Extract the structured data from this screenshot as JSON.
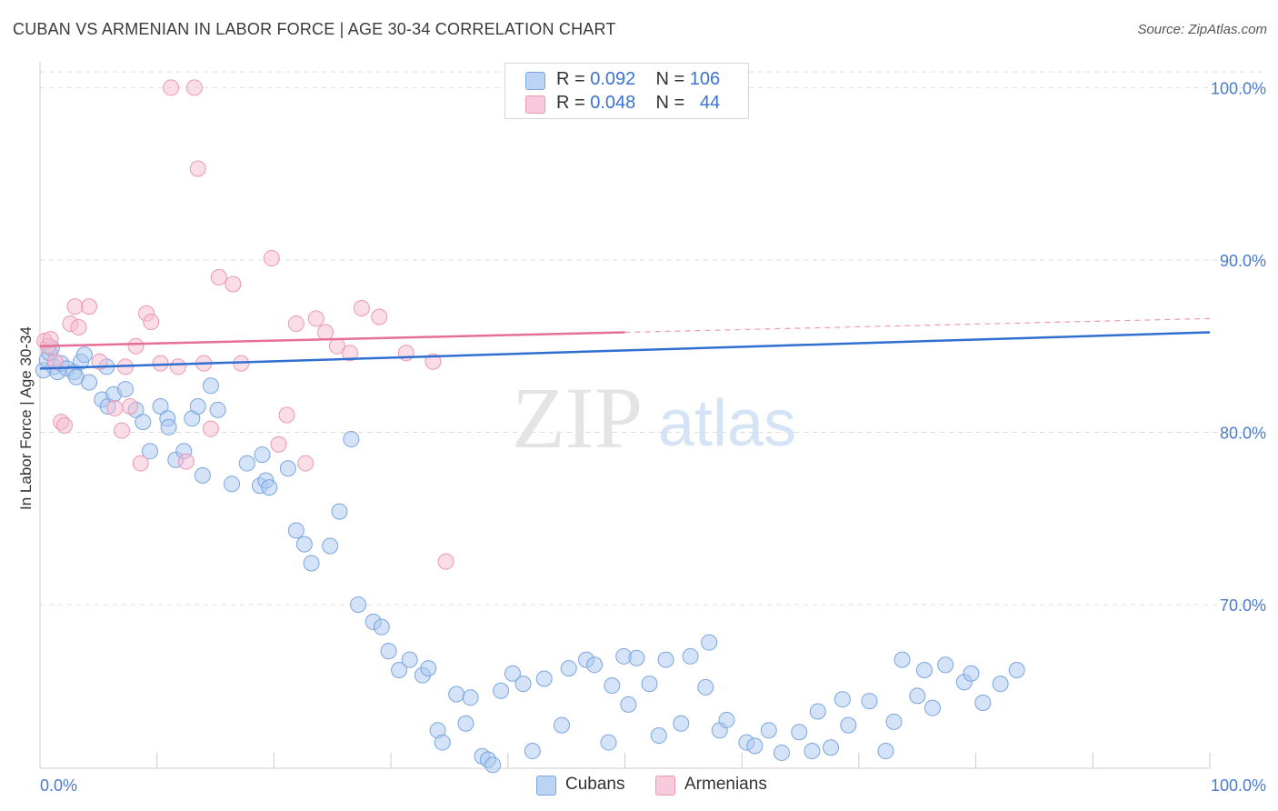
{
  "title": "CUBAN VS ARMENIAN IN LABOR FORCE | AGE 30-34 CORRELATION CHART",
  "source": "Source: ZipAtlas.com",
  "watermark": {
    "zip": "ZIP",
    "atlas": "atlas"
  },
  "legend": {
    "rows": [
      {
        "r_label": "R =",
        "r_value": "0.092",
        "n_label": "N =",
        "n_value": "106"
      },
      {
        "r_label": "R =",
        "r_value": "0.048",
        "n_label": "N =",
        "n_value": "44"
      }
    ]
  },
  "bottom_legend": [
    "Cubans",
    "Armenians"
  ],
  "colors": {
    "cubans_fill": "#a9c8f0",
    "cubans_stroke": "#7aa6e0",
    "cubans_line": "#2f6fcf",
    "armenians_fill": "#f7bcd0",
    "armenians_stroke": "#ec97b5",
    "armenians_line": "#e56f98",
    "grid": "#dddddd",
    "tick_text": "#4a7ad0"
  },
  "chart_data": {
    "type": "scatter",
    "title": "CUBAN VS ARMENIAN IN LABOR FORCE | AGE 30-34 CORRELATION CHART",
    "xlabel": "",
    "ylabel": "In Labor Force | Age 30-34",
    "xlim": [
      0,
      100
    ],
    "ylim": [
      60.5,
      101.5
    ],
    "x_tick_labels": [
      "0.0%",
      "100.0%"
    ],
    "y_ticks": [
      70,
      80,
      90,
      100
    ],
    "y_tick_labels": [
      "70.0%",
      "80.0%",
      "90.0%",
      "100.0%"
    ],
    "grid": true,
    "legend_position": "top-center",
    "series": [
      {
        "name": "Cubans",
        "regression": {
          "x": [
            0,
            100
          ],
          "y": [
            83.7,
            85.8
          ]
        },
        "points": [
          [
            0.3,
            83.6
          ],
          [
            0.6,
            84.2
          ],
          [
            0.8,
            84.6
          ],
          [
            1.0,
            84.9
          ],
          [
            1.2,
            83.8
          ],
          [
            1.5,
            83.5
          ],
          [
            1.8,
            84.0
          ],
          [
            2.3,
            83.7
          ],
          [
            2.9,
            83.5
          ],
          [
            3.1,
            83.2
          ],
          [
            3.5,
            84.1
          ],
          [
            3.8,
            84.5
          ],
          [
            4.2,
            82.9
          ],
          [
            5.3,
            81.9
          ],
          [
            5.7,
            83.8
          ],
          [
            5.8,
            81.5
          ],
          [
            6.3,
            82.2
          ],
          [
            7.3,
            82.5
          ],
          [
            8.2,
            81.3
          ],
          [
            8.8,
            80.6
          ],
          [
            9.4,
            78.9
          ],
          [
            10.3,
            81.5
          ],
          [
            10.9,
            80.8
          ],
          [
            11.0,
            80.3
          ],
          [
            11.6,
            78.4
          ],
          [
            12.3,
            78.9
          ],
          [
            13.0,
            80.8
          ],
          [
            13.5,
            81.5
          ],
          [
            13.9,
            77.5
          ],
          [
            14.6,
            82.7
          ],
          [
            15.2,
            81.3
          ],
          [
            16.4,
            77.0
          ],
          [
            17.7,
            78.2
          ],
          [
            18.8,
            76.9
          ],
          [
            19.0,
            78.7
          ],
          [
            19.3,
            77.2
          ],
          [
            19.6,
            76.8
          ],
          [
            21.2,
            77.9
          ],
          [
            21.9,
            74.3
          ],
          [
            22.6,
            73.5
          ],
          [
            23.2,
            72.4
          ],
          [
            24.8,
            73.4
          ],
          [
            25.6,
            75.4
          ],
          [
            26.6,
            79.6
          ],
          [
            27.2,
            70.0
          ],
          [
            28.5,
            69.0
          ],
          [
            29.2,
            68.7
          ],
          [
            29.8,
            67.3
          ],
          [
            30.7,
            66.2
          ],
          [
            31.6,
            66.8
          ],
          [
            32.7,
            65.9
          ],
          [
            33.2,
            66.3
          ],
          [
            34.0,
            62.7
          ],
          [
            34.4,
            62.0
          ],
          [
            35.6,
            64.8
          ],
          [
            36.4,
            63.1
          ],
          [
            36.8,
            64.6
          ],
          [
            37.8,
            61.2
          ],
          [
            38.3,
            61.0
          ],
          [
            38.7,
            60.7
          ],
          [
            39.4,
            65.0
          ],
          [
            40.4,
            66.0
          ],
          [
            41.3,
            65.4
          ],
          [
            42.1,
            61.5
          ],
          [
            43.1,
            65.7
          ],
          [
            44.6,
            63.0
          ],
          [
            45.2,
            66.3
          ],
          [
            46.7,
            66.8
          ],
          [
            47.4,
            66.5
          ],
          [
            48.6,
            62.0
          ],
          [
            48.9,
            65.3
          ],
          [
            49.9,
            67.0
          ],
          [
            50.3,
            64.2
          ],
          [
            51.0,
            66.9
          ],
          [
            52.1,
            65.4
          ],
          [
            52.9,
            62.4
          ],
          [
            53.5,
            66.8
          ],
          [
            54.8,
            63.1
          ],
          [
            55.6,
            67.0
          ],
          [
            56.9,
            65.2
          ],
          [
            57.2,
            67.8
          ],
          [
            58.1,
            62.7
          ],
          [
            58.7,
            63.3
          ],
          [
            60.4,
            62.0
          ],
          [
            61.1,
            61.8
          ],
          [
            62.3,
            62.7
          ],
          [
            63.4,
            61.4
          ],
          [
            64.9,
            62.6
          ],
          [
            66.0,
            61.5
          ],
          [
            66.5,
            63.8
          ],
          [
            67.6,
            61.7
          ],
          [
            68.6,
            64.5
          ],
          [
            69.1,
            63.0
          ],
          [
            70.9,
            64.4
          ],
          [
            72.3,
            61.5
          ],
          [
            73.0,
            63.2
          ],
          [
            73.7,
            66.8
          ],
          [
            75.0,
            64.7
          ],
          [
            75.6,
            66.2
          ],
          [
            76.3,
            64.0
          ],
          [
            77.4,
            66.5
          ],
          [
            79.0,
            65.5
          ],
          [
            79.6,
            66.0
          ],
          [
            80.6,
            64.3
          ],
          [
            82.1,
            65.4
          ],
          [
            83.5,
            66.2
          ]
        ]
      },
      {
        "name": "Armenians",
        "regression": {
          "x": [
            0,
            50
          ],
          "y": [
            85.0,
            85.8
          ]
        },
        "regression_extension": {
          "x": [
            50,
            100
          ],
          "y": [
            85.8,
            86.6
          ]
        },
        "points": [
          [
            0.4,
            85.3
          ],
          [
            0.7,
            85.0
          ],
          [
            0.9,
            85.4
          ],
          [
            1.3,
            84.1
          ],
          [
            1.8,
            80.6
          ],
          [
            2.1,
            80.4
          ],
          [
            2.6,
            86.3
          ],
          [
            3.0,
            87.3
          ],
          [
            3.3,
            86.1
          ],
          [
            4.2,
            87.3
          ],
          [
            5.1,
            84.1
          ],
          [
            6.4,
            81.4
          ],
          [
            7.0,
            80.1
          ],
          [
            7.3,
            83.8
          ],
          [
            7.7,
            81.5
          ],
          [
            8.2,
            85.0
          ],
          [
            8.6,
            78.2
          ],
          [
            9.1,
            86.9
          ],
          [
            9.5,
            86.4
          ],
          [
            10.3,
            84.0
          ],
          [
            11.2,
            100.0
          ],
          [
            11.8,
            83.8
          ],
          [
            12.5,
            78.3
          ],
          [
            13.2,
            100.0
          ],
          [
            13.5,
            95.3
          ],
          [
            14.0,
            84.0
          ],
          [
            14.6,
            80.2
          ],
          [
            15.3,
            89.0
          ],
          [
            16.5,
            88.6
          ],
          [
            17.2,
            84.0
          ],
          [
            19.8,
            90.1
          ],
          [
            20.4,
            79.3
          ],
          [
            21.1,
            81.0
          ],
          [
            21.9,
            86.3
          ],
          [
            22.7,
            78.2
          ],
          [
            23.6,
            86.6
          ],
          [
            24.4,
            85.8
          ],
          [
            25.4,
            85.0
          ],
          [
            26.5,
            84.6
          ],
          [
            27.5,
            87.2
          ],
          [
            29.0,
            86.7
          ],
          [
            31.3,
            84.6
          ],
          [
            33.6,
            84.1
          ],
          [
            34.7,
            72.5
          ]
        ]
      }
    ]
  }
}
